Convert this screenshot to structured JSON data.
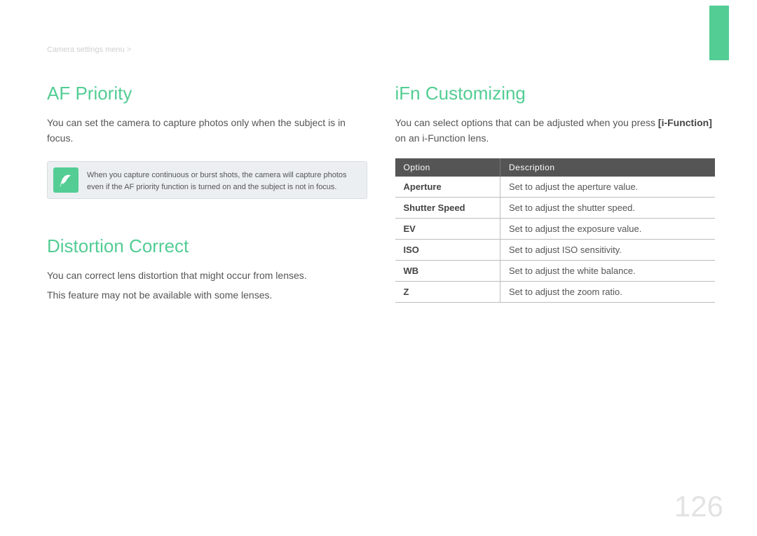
{
  "breadcrumb": "Camera settings menu >",
  "page_number": "126",
  "colors": {
    "accent": "#53cd94",
    "table_header_bg": "#555555",
    "note_bg": "#ebeff1",
    "page_num": "#e3e3e3"
  },
  "left": {
    "section1": {
      "heading": "AF Priority",
      "body": "You can set the camera to capture photos only when the subject is in focus.",
      "note": "When you capture continuous or burst shots, the camera will capture photos even if the AF priority function is turned on and the subject is not in focus.",
      "note_icon": "pen-icon"
    },
    "section2": {
      "heading": "Distortion Correct",
      "body1": "You can correct lens distortion that might occur from lenses.",
      "body2": "This feature may not be available with some lenses."
    }
  },
  "right": {
    "heading": "iFn Customizing",
    "body_pre": "You can select options that can be adjusted when you press ",
    "body_bold": "[i-Function]",
    "body_post": " on an i-Function lens.",
    "table": {
      "header_option": "Option",
      "header_description": "Description",
      "rows": [
        {
          "option": "Aperture",
          "description": "Set to adjust the aperture value."
        },
        {
          "option": "Shutter Speed",
          "description": "Set to adjust the shutter speed."
        },
        {
          "option": "EV",
          "description": "Set to adjust the exposure value."
        },
        {
          "option": "ISO",
          "description": "Set to adjust ISO sensitivity."
        },
        {
          "option": "WB",
          "description": "Set to adjust the white balance."
        },
        {
          "option": "Z",
          "description": "Set to adjust the zoom ratio."
        }
      ]
    }
  }
}
